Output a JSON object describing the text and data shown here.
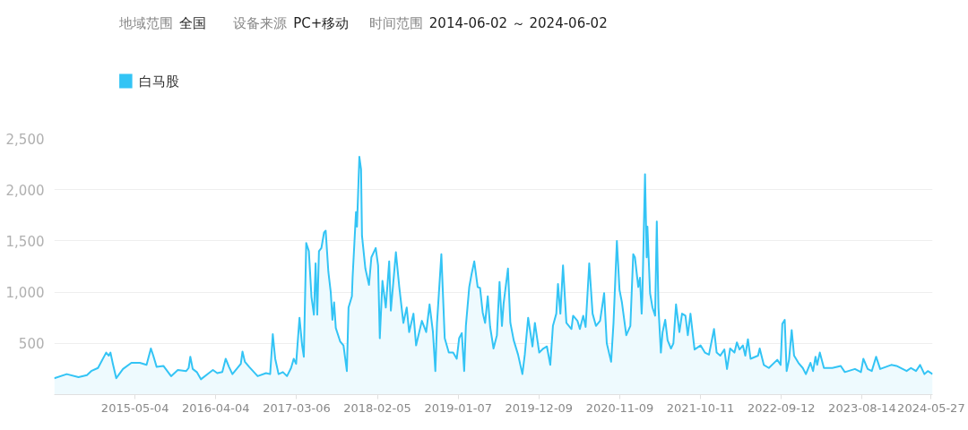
{
  "chart_data": {
    "type": "area",
    "annotations": [
      "地域范围",
      "全国",
      "设备来源",
      "PC+移动",
      "时间范围",
      "2014-06-02 ～ 2024-06-02"
    ],
    "x": [
      "2014-06-02",
      "2014-07-24",
      "2014-09-11",
      "2014-10-16",
      "2014-11-03",
      "2014-12-01",
      "2015-01-04",
      "2015-01-15",
      "2015-01-22",
      "2015-02-01",
      "2015-02-15",
      "2015-03-15",
      "2015-04-19",
      "2015-05-24",
      "2015-06-21",
      "2015-07-09",
      "2015-07-19",
      "2015-08-02",
      "2015-08-30",
      "2015-10-01",
      "2015-10-29",
      "2015-12-03",
      "2015-12-13",
      "2015-12-20",
      "2015-12-30",
      "2016-01-16",
      "2016-02-02",
      "2016-03-06",
      "2016-03-23",
      "2016-04-10",
      "2016-05-01",
      "2016-05-15",
      "2016-05-29",
      "2016-06-12",
      "2016-07-17",
      "2016-07-24",
      "2016-08-03",
      "2016-08-21",
      "2016-09-25",
      "2016-10-30",
      "2016-11-16",
      "2016-11-27",
      "2016-12-07",
      "2016-12-21",
      "2017-01-08",
      "2017-01-25",
      "2017-02-11",
      "2017-02-22",
      "2017-03-04",
      "2017-03-18",
      "2017-03-29",
      "2017-04-05",
      "2017-04-15",
      "2017-04-26",
      "2017-05-07",
      "2017-05-17",
      "2017-05-24",
      "2017-05-31",
      "2017-06-07",
      "2017-06-17",
      "2017-06-28",
      "2017-07-05",
      "2017-07-16",
      "2017-07-26",
      "2017-08-02",
      "2017-08-09",
      "2017-08-16",
      "2017-09-03",
      "2017-09-17",
      "2017-10-01",
      "2017-10-08",
      "2017-10-22",
      "2017-10-25",
      "2017-11-08",
      "2017-11-12",
      "2017-11-22",
      "2017-11-29",
      "2017-12-03",
      "2017-12-17",
      "2018-01-01",
      "2018-01-11",
      "2018-01-29",
      "2018-02-08",
      "2018-02-15",
      "2018-02-26",
      "2018-03-12",
      "2018-03-26",
      "2018-04-02",
      "2018-04-23",
      "2018-05-07",
      "2018-05-24",
      "2018-06-07",
      "2018-06-17",
      "2018-07-05",
      "2018-07-16",
      "2018-08-09",
      "2018-08-27",
      "2018-09-10",
      "2018-09-24",
      "2018-10-04",
      "2018-10-11",
      "2018-10-29",
      "2018-11-12",
      "2018-11-29",
      "2018-12-17",
      "2019-01-01",
      "2019-01-11",
      "2019-01-22",
      "2019-02-01",
      "2019-02-08",
      "2019-02-22",
      "2019-03-04",
      "2019-03-15",
      "2019-03-29",
      "2019-04-08",
      "2019-04-19",
      "2019-04-29",
      "2019-05-10",
      "2019-05-20",
      "2019-06-03",
      "2019-06-17",
      "2019-06-28",
      "2019-07-08",
      "2019-07-15",
      "2019-08-02",
      "2019-08-12",
      "2019-08-26",
      "2019-09-13",
      "2019-10-01",
      "2019-10-11",
      "2019-10-25",
      "2019-11-12",
      "2019-11-22",
      "2019-12-10",
      "2019-12-27",
      "2020-01-11",
      "2020-01-25",
      "2020-02-05",
      "2020-02-19",
      "2020-02-26",
      "2020-03-07",
      "2020-03-18",
      "2020-04-01",
      "2020-04-22",
      "2020-04-29",
      "2020-05-17",
      "2020-05-27",
      "2020-06-10",
      "2020-06-20",
      "2020-07-05",
      "2020-07-19",
      "2020-08-02",
      "2020-08-19",
      "2020-09-05",
      "2020-09-16",
      "2020-10-04",
      "2020-10-14",
      "2020-10-28",
      "2020-11-08",
      "2020-11-18",
      "2020-12-06",
      "2020-12-23",
      "2021-01-04",
      "2021-01-11",
      "2021-01-25",
      "2021-02-01",
      "2021-02-08",
      "2021-02-11",
      "2021-02-22",
      "2021-03-01",
      "2021-03-04",
      "2021-03-15",
      "2021-03-25",
      "2021-04-05",
      "2021-04-12",
      "2021-04-19",
      "2021-04-29",
      "2021-05-06",
      "2021-05-17",
      "2021-05-27",
      "2021-06-10",
      "2021-06-20",
      "2021-07-01",
      "2021-07-15",
      "2021-07-26",
      "2021-08-09",
      "2021-08-19",
      "2021-08-30",
      "2021-09-16",
      "2021-10-11",
      "2021-10-29",
      "2021-11-15",
      "2021-12-06",
      "2021-12-17",
      "2022-01-01",
      "2022-01-18",
      "2022-01-29",
      "2022-02-11",
      "2022-03-01",
      "2022-03-11",
      "2022-03-22",
      "2022-04-05",
      "2022-04-15",
      "2022-04-26",
      "2022-05-07",
      "2022-06-07",
      "2022-06-14",
      "2022-07-01",
      "2022-07-22",
      "2022-08-26",
      "2022-09-09",
      "2022-09-16",
      "2022-09-26",
      "2022-10-04",
      "2022-10-14",
      "2022-10-25",
      "2022-11-04",
      "2022-11-22",
      "2022-12-10",
      "2022-12-23",
      "2023-01-11",
      "2023-01-22",
      "2023-02-01",
      "2023-02-08",
      "2023-02-19",
      "2023-03-08",
      "2023-04-12",
      "2023-05-17",
      "2023-06-03",
      "2023-07-15",
      "2023-08-09",
      "2023-08-19",
      "2023-09-06",
      "2023-09-23",
      "2023-10-11",
      "2023-10-28",
      "2023-12-13",
      "2024-01-04",
      "2024-02-15",
      "2024-03-04",
      "2024-03-25",
      "2024-04-11",
      "2024-04-29",
      "2024-05-13",
      "2024-06-02"
    ],
    "series": [
      {
        "name": "白马股",
        "color": "#33c4f5",
        "values": [
          160,
          200,
          170,
          190,
          230,
          260,
          410,
          380,
          410,
          300,
          160,
          250,
          310,
          310,
          290,
          450,
          380,
          270,
          280,
          180,
          240,
          230,
          260,
          370,
          250,
          220,
          150,
          210,
          240,
          210,
          220,
          350,
          270,
          200,
          300,
          420,
          320,
          270,
          180,
          210,
          200,
          590,
          350,
          200,
          220,
          180,
          260,
          350,
          300,
          750,
          480,
          370,
          1480,
          1400,
          950,
          780,
          1280,
          780,
          1400,
          1430,
          1580,
          1600,
          1200,
          1000,
          730,
          900,
          650,
          520,
          480,
          230,
          850,
          960,
          1150,
          1780,
          1640,
          2320,
          2200,
          1550,
          1230,
          1070,
          1340,
          1430,
          1260,
          550,
          1110,
          850,
          1300,
          820,
          1390,
          1050,
          700,
          850,
          610,
          790,
          480,
          720,
          610,
          880,
          610,
          230,
          700,
          1370,
          550,
          410,
          410,
          350,
          550,
          600,
          230,
          670,
          1050,
          1180,
          1300,
          1050,
          1040,
          800,
          700,
          960,
          660,
          450,
          580,
          1100,
          670,
          890,
          1230,
          700,
          530,
          390,
          200,
          390,
          750,
          470,
          700,
          410,
          450,
          470,
          290,
          670,
          790,
          1080,
          790,
          1260,
          700,
          640,
          770,
          720,
          640,
          770,
          660,
          1280,
          790,
          670,
          720,
          990,
          500,
          320,
          700,
          1500,
          1020,
          900,
          580,
          670,
          1370,
          1340,
          1050,
          1140,
          790,
          960,
          2150,
          1340,
          1640,
          990,
          850,
          770,
          1690,
          850,
          410,
          610,
          730,
          530,
          450,
          500,
          880,
          610,
          790,
          770,
          580,
          790,
          440,
          480,
          410,
          390,
          640,
          410,
          380,
          440,
          250,
          450,
          410,
          510,
          440,
          480,
          380,
          540,
          350,
          380,
          450,
          290,
          260,
          340,
          290,
          690,
          730,
          230,
          340,
          630,
          380,
          310,
          260,
          200,
          310,
          230,
          370,
          290,
          410,
          260,
          260,
          280,
          220,
          250,
          220,
          350,
          250,
          230,
          370,
          250,
          290,
          280,
          230,
          260,
          230,
          290,
          200,
          230,
          200
        ]
      }
    ],
    "xlim": [
      "2014-06-02",
      "2024-06-02"
    ],
    "xticks": [
      {
        "value": "2015-05-04",
        "label": "2015-05-04"
      },
      {
        "value": "2016-04-04",
        "label": "2016-04-04"
      },
      {
        "value": "2017-03-06",
        "label": "2017-03-06"
      },
      {
        "value": "2018-02-05",
        "label": "2018-02-05"
      },
      {
        "value": "2019-01-07",
        "label": "2019-01-07"
      },
      {
        "value": "2019-12-09",
        "label": "2019-12-09"
      },
      {
        "value": "2020-11-09",
        "label": "2020-11-09"
      },
      {
        "value": "2021-10-11",
        "label": "2021-10-11"
      },
      {
        "value": "2022-09-12",
        "label": "2022-09-12"
      },
      {
        "value": "2023-08-14",
        "label": "2023-08-14"
      },
      {
        "value": "2024-05-27",
        "label": "2024-05-27"
      }
    ],
    "ylim": [
      0,
      2500
    ],
    "yticks": [
      500,
      {
        "value": 1000,
        "label": "1,000"
      },
      {
        "value": 1500,
        "label": "1,500"
      },
      {
        "value": 2000,
        "label": "2,000"
      },
      {
        "value": 2500,
        "label": "2,500"
      }
    ],
    "grid": "y",
    "legend": "top left",
    "marker": "none",
    "line_style": "solid"
  }
}
